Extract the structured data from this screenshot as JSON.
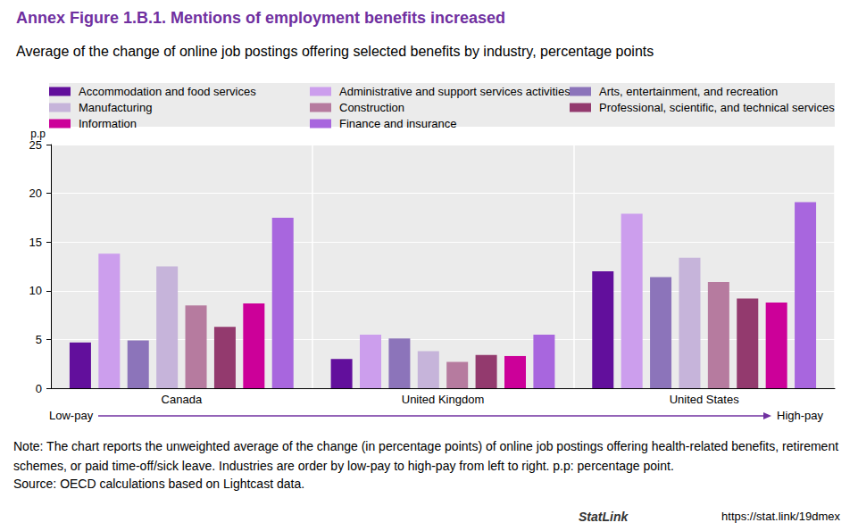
{
  "chart_data": {
    "type": "bar",
    "title": "Annex Figure 1.B.1. Mentions of employment benefits increased",
    "subtitle": "Average of the change of online job postings offering selected benefits by industry, percentage points",
    "y_label": "p.p",
    "categories": [
      "Canada",
      "United Kingdom",
      "United States"
    ],
    "series": [
      {
        "name": "Accommodation and food services",
        "color": "#620f9c",
        "values": [
          4.7,
          3.0,
          12.0
        ]
      },
      {
        "name": "Administrative and support services activities",
        "color": "#cc9eed",
        "values": [
          13.8,
          5.5,
          17.9
        ]
      },
      {
        "name": "Arts, entertainment, and recreation",
        "color": "#8c74ba",
        "values": [
          4.9,
          5.1,
          11.4
        ]
      },
      {
        "name": "Manufacturing",
        "color": "#c6b4da",
        "values": [
          12.5,
          3.8,
          13.4
        ]
      },
      {
        "name": "Construction",
        "color": "#b67b9f",
        "values": [
          8.5,
          2.7,
          10.9
        ]
      },
      {
        "name": "Professional, scientific, and technical services",
        "color": "#933a6e",
        "values": [
          6.3,
          3.4,
          9.2
        ]
      },
      {
        "name": "Information",
        "color": "#cc0099",
        "values": [
          8.7,
          3.3,
          8.8
        ]
      },
      {
        "name": "Finance and insurance",
        "color": "#a866de",
        "values": [
          17.5,
          5.5,
          19.1
        ]
      }
    ],
    "ylim": [
      0,
      25
    ],
    "yticks": [
      0,
      5,
      10,
      15,
      20,
      25
    ],
    "grid": true,
    "legend": "top",
    "data_labels": false,
    "annotations": [
      "Low-pay",
      "High-pay"
    ],
    "note": "Note: The chart reports the unweighted average of the change (in percentage points) of online job postings offering health-related benefits, retirement schemes, or paid time-off/sick leave. Industries are order by low-pay to high-pay from left to right. p.p: percentage point.",
    "source": "Source: OECD calculations based on Lightcast data.",
    "statlink": "StatLink",
    "statlink_url": "https://stat.link/19dmex"
  }
}
